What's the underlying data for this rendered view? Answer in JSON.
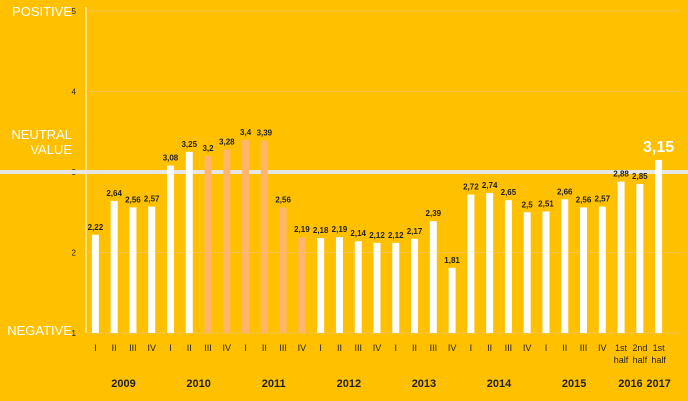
{
  "chart_data": {
    "type": "bar",
    "categories": [
      "I",
      "II",
      "III",
      "IV",
      "I",
      "II",
      "III",
      "IV",
      "I",
      "II",
      "III",
      "IV",
      "I",
      "II",
      "III",
      "IV",
      "I",
      "II",
      "III",
      "IV",
      "I",
      "II",
      "III",
      "IV",
      "I",
      "II",
      "III",
      "IV",
      "1st half",
      "2nd half",
      "1st half"
    ],
    "values": [
      2.22,
      2.64,
      2.56,
      2.57,
      3.08,
      3.25,
      3.2,
      3.28,
      3.4,
      3.39,
      2.56,
      2.19,
      2.18,
      2.19,
      2.14,
      2.12,
      2.12,
      2.17,
      2.39,
      1.81,
      2.72,
      2.74,
      2.65,
      2.5,
      2.51,
      2.66,
      2.56,
      2.57,
      2.88,
      2.85,
      3.15
    ],
    "value_labels": [
      "2,22",
      "2,64",
      "2,56",
      "2,57",
      "3,08",
      "3,25",
      "3,2",
      "3,28",
      "3,4",
      "3,39",
      "2,56",
      "2,19",
      "2,18",
      "2,19",
      "2,14",
      "2,12",
      "2,12",
      "2,17",
      "2,39",
      "1,81",
      "2,72",
      "2,74",
      "2,65",
      "2,5",
      "2,51",
      "2,66",
      "2,56",
      "2,57",
      "2,88",
      "2,85",
      "3,15"
    ],
    "category_lines": [
      [
        "I"
      ],
      [
        "II"
      ],
      [
        "III"
      ],
      [
        "IV"
      ],
      [
        "I"
      ],
      [
        "II"
      ],
      [
        "III"
      ],
      [
        "IV"
      ],
      [
        "I"
      ],
      [
        "II"
      ],
      [
        "III"
      ],
      [
        "IV"
      ],
      [
        "I"
      ],
      [
        "II"
      ],
      [
        "III"
      ],
      [
        "IV"
      ],
      [
        "I"
      ],
      [
        "II"
      ],
      [
        "III"
      ],
      [
        "IV"
      ],
      [
        "I"
      ],
      [
        "II"
      ],
      [
        "III"
      ],
      [
        "IV"
      ],
      [
        "I"
      ],
      [
        "II"
      ],
      [
        "III"
      ],
      [
        "IV"
      ],
      [
        "1st",
        "half"
      ],
      [
        "2nd",
        "half"
      ],
      [
        "1st",
        "half"
      ]
    ],
    "bar_colors": [
      "#FFFFFF",
      "#FFFFFF",
      "#FFFFFF",
      "#FFFFFF",
      "#FFFFFF",
      "#FFFFFF",
      "#FFB66C",
      "#FFB66C",
      "#FFB66C",
      "#FFB66C",
      "#FFB66C",
      "#FFB66C",
      "#FFFFFF",
      "#FFFFFF",
      "#FFFFFF",
      "#FFFFFF",
      "#FFFFFF",
      "#FFFFFF",
      "#FFFFFF",
      "#FFFFFF",
      "#FFFFFF",
      "#FFFFFF",
      "#FFFFFF",
      "#FFFFFF",
      "#FFFFFF",
      "#FFFFFF",
      "#FFFFFF",
      "#FFFFFF",
      "#FFFFFF",
      "#FFFFFF",
      "#FFFFFF"
    ],
    "highlight_index": 30,
    "years": [
      {
        "label": "2009",
        "start": 0,
        "end": 3
      },
      {
        "label": "2010",
        "start": 4,
        "end": 7
      },
      {
        "label": "2011",
        "start": 8,
        "end": 11
      },
      {
        "label": "2012",
        "start": 12,
        "end": 15
      },
      {
        "label": "2013",
        "start": 16,
        "end": 19
      },
      {
        "label": "2014",
        "start": 20,
        "end": 23
      },
      {
        "label": "2015",
        "start": 24,
        "end": 27
      },
      {
        "label": "2016",
        "start": 28,
        "end": 29
      },
      {
        "label": "2017",
        "start": 30,
        "end": 30
      }
    ],
    "yticks": [
      "1",
      "2",
      "3",
      "4",
      "5"
    ],
    "ylim": [
      1,
      5
    ],
    "reference_line": 3,
    "grid": true,
    "side_labels": {
      "positive": "POSITIVE",
      "neutral_line1": "NEUTRAL",
      "neutral_line2": "VALUE",
      "negative": "NEGATIVE"
    },
    "colors": {
      "background": "#FFC000",
      "bar": "#FFFFFF",
      "bar_alt": "#FFB66C",
      "text": "#1F1F1F",
      "label_white": "#FFFFFF",
      "reference_line": "#E6E6E6"
    }
  }
}
